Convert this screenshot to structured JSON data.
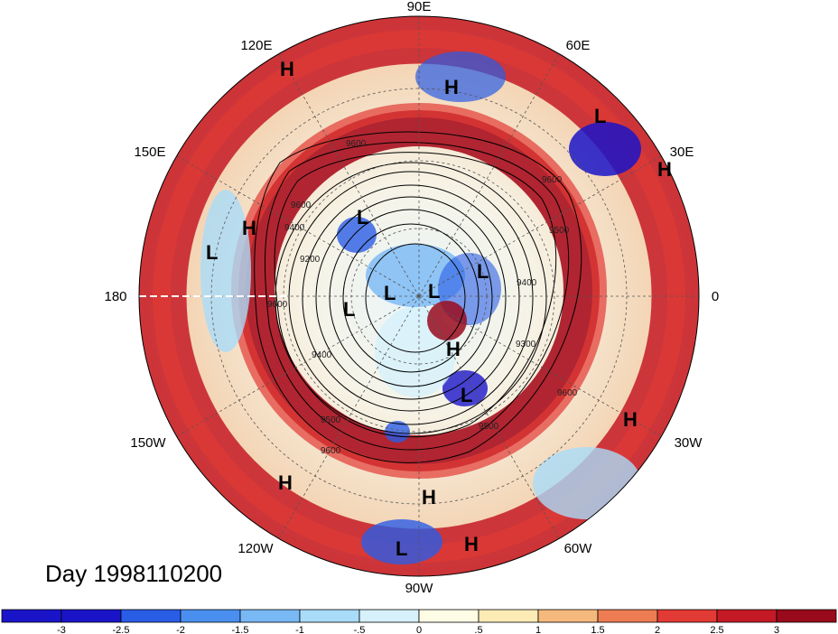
{
  "map": {
    "projection": "north-polar-stereographic",
    "lon_labels": [
      "90E",
      "60E",
      "30E",
      "0",
      "30W",
      "60W",
      "90W",
      "120W",
      "150W",
      "180",
      "150E",
      "120E"
    ],
    "contour_labels": [
      "9600",
      "9600",
      "9200",
      "9400",
      "9500",
      "9600",
      "9600",
      "9300",
      "9400",
      "9500",
      "9600",
      "9500",
      "9600",
      "9400"
    ],
    "pressure_centers": [
      "H",
      "H",
      "L",
      "H",
      "H",
      "L",
      "L",
      "L",
      "L",
      "L",
      "L",
      "H",
      "L",
      "H",
      "H",
      "H",
      "H",
      "L",
      "H"
    ]
  },
  "title": "Day 1998110200",
  "colorbar": {
    "ticks": [
      "-3",
      "-2.5",
      "-2",
      "-1.5",
      "-1",
      "-.5",
      "0",
      ".5",
      "1",
      "1.5",
      "2",
      "2.5",
      "3"
    ],
    "colors": [
      "#1a14c8",
      "#2a5de6",
      "#4a8ff0",
      "#78b8f5",
      "#a9dcf9",
      "#d6f1fb",
      "#fffce6",
      "#fcebb4",
      "#f6b97d",
      "#ee7c52",
      "#e23a34",
      "#c41a26",
      "#990a1c"
    ]
  }
}
